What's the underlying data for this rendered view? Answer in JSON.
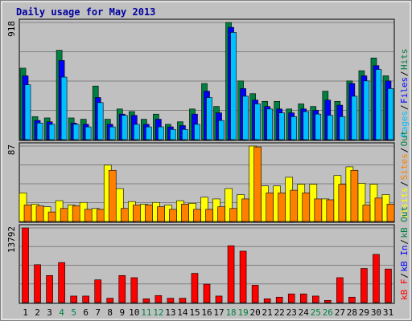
{
  "chart_data": {
    "type": "bar",
    "title": "Daily usage for May 2013",
    "categories": [
      "1",
      "2",
      "3",
      "4",
      "5",
      "6",
      "7",
      "8",
      "9",
      "10",
      "11",
      "12",
      "13",
      "14",
      "15",
      "16",
      "17",
      "18",
      "19",
      "20",
      "21",
      "22",
      "23",
      "24",
      "25",
      "26",
      "27",
      "28",
      "29",
      "30",
      "31"
    ],
    "weekend_days": [
      "4",
      "5",
      "11",
      "12",
      "18",
      "19",
      "25",
      "26"
    ],
    "panels": [
      {
        "max_label": "918",
        "ylim": [
          0,
          918
        ],
        "right_labels": [
          "Pages",
          "Files",
          "Hits"
        ],
        "series": [
          {
            "name": "Hits",
            "color": "#008040",
            "values": [
              560,
              180,
              170,
              700,
              170,
              160,
              420,
              160,
              240,
              220,
              160,
              200,
              120,
              140,
              240,
              440,
              260,
              918,
              460,
              360,
              300,
              300,
              240,
              280,
              260,
              380,
              300,
              460,
              540,
              640,
              500
            ]
          },
          {
            "name": "Files",
            "color": "#0000ff",
            "values": [
              500,
              150,
              140,
              620,
              130,
              120,
              330,
              120,
              200,
              190,
              120,
              160,
              100,
              110,
              200,
              380,
              210,
              880,
              400,
              310,
              260,
              240,
              210,
              240,
              230,
              310,
              270,
              440,
              500,
              580,
              460
            ]
          },
          {
            "name": "Pages",
            "color": "#00c0ff",
            "values": [
              430,
              130,
              120,
              490,
              120,
              100,
              290,
              100,
              190,
              120,
              100,
              100,
              80,
              80,
              120,
              330,
              150,
              840,
              340,
              280,
              240,
              210,
              180,
              220,
              200,
              190,
              180,
              340,
              460,
              550,
              400
            ]
          }
        ]
      },
      {
        "max_label": "87",
        "ylim": [
          0,
          87
        ],
        "right_labels": [
          "Visits",
          "Sites",
          "Out"
        ],
        "series": [
          {
            "name": "Visits",
            "color": "#ffff00",
            "values": [
              33,
              20,
              17,
              24,
              19,
              22,
              15,
              65,
              38,
              23,
              20,
              22,
              19,
              24,
              21,
              28,
              26,
              38,
              31,
              87,
              41,
              41,
              51,
              43,
              43,
              26,
              53,
              63,
              44,
              43,
              31
            ]
          },
          {
            "name": "Sites",
            "color": "#ff8000",
            "values": [
              19,
              18,
              11,
              15,
              18,
              14,
              14,
              59,
              15,
              19,
              19,
              17,
              14,
              20,
              14,
              14,
              17,
              15,
              26,
              86,
              33,
              33,
              36,
              33,
              26,
              25,
              43,
              59,
              19,
              27,
              20
            ]
          }
        ]
      },
      {
        "max_label": "13792",
        "ylim": [
          0,
          13792
        ],
        "right_labels": [
          "kB F",
          "kB In",
          "kB Out"
        ],
        "series": [
          {
            "name": "kB F",
            "color": "#ff0000",
            "values": [
              13792,
              7000,
              5000,
              7400,
              1200,
              1200,
              4200,
              800,
              5000,
              4600,
              700,
              1300,
              800,
              800,
              5400,
              3400,
              1200,
              10500,
              9500,
              3200,
              700,
              1000,
              1600,
              1600,
              1200,
              400,
              4600,
              1000,
              6300,
              8900,
              6200
            ]
          }
        ]
      }
    ],
    "colors": {
      "background": "#c0c0c0",
      "grid": "#808080",
      "title": "#0000a0",
      "weekend_tick": "#008040",
      "weekday_tick": "#000000",
      "label_pages": "#00c0ff",
      "label_files": "#0000ff",
      "label_hits": "#008040",
      "label_visits": "#ffff00",
      "label_sites": "#ff8000",
      "label_out": "#008040",
      "label_kbf": "#ff0000",
      "label_kbin": "#0000ff",
      "label_kbout": "#008040"
    }
  }
}
